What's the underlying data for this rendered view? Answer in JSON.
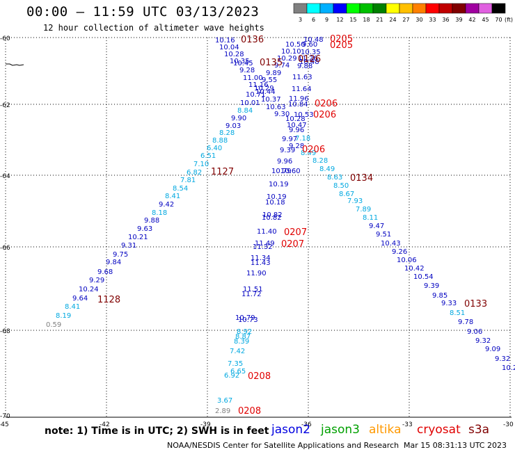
{
  "header": {
    "title": "00:00 — 11:59 UTC 03/13/2023",
    "subtitle": "12 hour collection of altimeter wave heights"
  },
  "color_scale": {
    "unit": "(ft)",
    "bins": [
      {
        "label": "3",
        "color": "#808080"
      },
      {
        "label": "6",
        "color": "#00ffff"
      },
      {
        "label": "9",
        "color": "#00b0ff"
      },
      {
        "label": "12",
        "color": "#0000ff"
      },
      {
        "label": "15",
        "color": "#00ff00"
      },
      {
        "label": "18",
        "color": "#00c000"
      },
      {
        "label": "21",
        "color": "#008000"
      },
      {
        "label": "24",
        "color": "#ffff00"
      },
      {
        "label": "27",
        "color": "#ffc000"
      },
      {
        "label": "30",
        "color": "#ff8000"
      },
      {
        "label": "33",
        "color": "#ff0000"
      },
      {
        "label": "36",
        "color": "#c00000"
      },
      {
        "label": "39",
        "color": "#800000"
      },
      {
        "label": "42",
        "color": "#a000a0"
      },
      {
        "label": "45",
        "color": "#e060e0"
      },
      {
        "label": "70",
        "color": "#000000"
      }
    ]
  },
  "map": {
    "lat_labels": [
      "-60",
      "-62",
      "-64",
      "-66",
      "-68",
      "-70"
    ],
    "lon_labels": [
      "-45",
      "-42",
      "-39",
      "-36",
      "-33",
      "-30"
    ],
    "colors": {
      "navy": "#0000c0",
      "cyan": "#00a8e0",
      "gray": "#808080",
      "time_dark": "#800000",
      "time_red": "#e00000",
      "grid": "#000000"
    },
    "readings": [
      {
        "t": "10.16",
        "c": "navy"
      },
      {
        "t": "10.04",
        "c": "navy"
      },
      {
        "t": "10.28",
        "c": "navy"
      },
      {
        "t": "10.35",
        "c": "navy"
      },
      {
        "t": "10.45",
        "c": "navy"
      },
      {
        "t": "9.28",
        "c": "navy"
      },
      {
        "t": "11.00",
        "c": "navy"
      },
      {
        "t": "11.16",
        "c": "navy"
      },
      {
        "t": "10.29",
        "c": "navy"
      },
      {
        "t": "10.44",
        "c": "navy"
      },
      {
        "t": "10.71",
        "c": "navy"
      },
      {
        "t": "10.37",
        "c": "navy"
      },
      {
        "t": "10.01",
        "c": "navy"
      },
      {
        "t": "8.84",
        "c": "cyan"
      },
      {
        "t": "9.90",
        "c": "navy"
      },
      {
        "t": "9.03",
        "c": "navy"
      },
      {
        "t": "8.28",
        "c": "cyan"
      },
      {
        "t": "8.88",
        "c": "cyan"
      },
      {
        "t": "6.40",
        "c": "cyan"
      },
      {
        "t": "6.51",
        "c": "cyan"
      },
      {
        "t": "7.10",
        "c": "cyan"
      },
      {
        "t": "6.82",
        "c": "cyan"
      },
      {
        "t": "7.81",
        "c": "cyan"
      },
      {
        "t": "8.54",
        "c": "cyan"
      },
      {
        "t": "8.41",
        "c": "cyan"
      },
      {
        "t": "9.42",
        "c": "navy"
      },
      {
        "t": "8.18",
        "c": "cyan"
      },
      {
        "t": "9.88",
        "c": "navy"
      },
      {
        "t": "9.63",
        "c": "navy"
      },
      {
        "t": "10.21",
        "c": "navy"
      },
      {
        "t": "9.31",
        "c": "navy"
      },
      {
        "t": "9.75",
        "c": "navy"
      },
      {
        "t": "9.84",
        "c": "navy"
      },
      {
        "t": "9.68",
        "c": "navy"
      },
      {
        "t": "9.29",
        "c": "navy"
      },
      {
        "t": "10.24",
        "c": "navy"
      },
      {
        "t": "9.64",
        "c": "navy"
      },
      {
        "t": "8.41",
        "c": "cyan"
      },
      {
        "t": "8.19",
        "c": "cyan"
      },
      {
        "t": "0.59",
        "c": "gray"
      },
      {
        "t": "10.48",
        "c": "navy"
      },
      {
        "t": "10.50",
        "c": "navy"
      },
      {
        "t": "9.60",
        "c": "navy"
      },
      {
        "t": "10.10",
        "c": "navy"
      },
      {
        "t": "10.35",
        "c": "navy"
      },
      {
        "t": "10.29",
        "c": "navy"
      },
      {
        "t": "11.26",
        "c": "navy"
      },
      {
        "t": "10.48",
        "c": "navy"
      },
      {
        "t": "9.88",
        "c": "navy"
      },
      {
        "t": "9.74",
        "c": "navy"
      },
      {
        "t": "9.89",
        "c": "navy"
      },
      {
        "t": "9.55",
        "c": "navy"
      },
      {
        "t": "11.63",
        "c": "navy"
      },
      {
        "t": "11.64",
        "c": "navy"
      },
      {
        "t": "11.96",
        "c": "navy"
      },
      {
        "t": "10.84",
        "c": "navy"
      },
      {
        "t": "10.63",
        "c": "navy"
      },
      {
        "t": "9.30",
        "c": "navy"
      },
      {
        "t": "10.53",
        "c": "navy"
      },
      {
        "t": "10.28",
        "c": "navy"
      },
      {
        "t": "10.47",
        "c": "navy"
      },
      {
        "t": "9.96",
        "c": "navy"
      },
      {
        "t": "9.97",
        "c": "navy"
      },
      {
        "t": "7.18",
        "c": "cyan"
      },
      {
        "t": "9.28",
        "c": "navy"
      },
      {
        "t": "9.39",
        "c": "navy"
      },
      {
        "t": "8.49",
        "c": "cyan"
      },
      {
        "t": "9.96",
        "c": "navy"
      },
      {
        "t": "8.28",
        "c": "cyan"
      },
      {
        "t": "8.49",
        "c": "cyan"
      },
      {
        "t": "10.79",
        "c": "navy"
      },
      {
        "t": "10.60",
        "c": "navy"
      },
      {
        "t": "8.63",
        "c": "cyan"
      },
      {
        "t": "10.19",
        "c": "navy"
      },
      {
        "t": "8.50",
        "c": "cyan"
      },
      {
        "t": "8.67",
        "c": "cyan"
      },
      {
        "t": "10.19",
        "c": "navy"
      },
      {
        "t": "10.18",
        "c": "navy"
      },
      {
        "t": "7.93",
        "c": "cyan"
      },
      {
        "t": "7.89",
        "c": "cyan"
      },
      {
        "t": "10.82",
        "c": "navy"
      },
      {
        "t": "10.82",
        "c": "navy"
      },
      {
        "t": "8.11",
        "c": "cyan"
      },
      {
        "t": "9.47",
        "c": "navy"
      },
      {
        "t": "11.40",
        "c": "navy"
      },
      {
        "t": "9.51",
        "c": "navy"
      },
      {
        "t": "11.49",
        "c": "navy"
      },
      {
        "t": "10.43",
        "c": "navy"
      },
      {
        "t": "11.32",
        "c": "navy"
      },
      {
        "t": "9.26",
        "c": "navy"
      },
      {
        "t": "10.06",
        "c": "navy"
      },
      {
        "t": "11.34",
        "c": "navy"
      },
      {
        "t": "11.43",
        "c": "navy"
      },
      {
        "t": "10.42",
        "c": "navy"
      },
      {
        "t": "11.90",
        "c": "navy"
      },
      {
        "t": "10.54",
        "c": "navy"
      },
      {
        "t": "9.39",
        "c": "navy"
      },
      {
        "t": "11.51",
        "c": "navy"
      },
      {
        "t": "9.85",
        "c": "navy"
      },
      {
        "t": "11.72",
        "c": "navy"
      },
      {
        "t": "9.33",
        "c": "navy"
      },
      {
        "t": "8.51",
        "c": "cyan"
      },
      {
        "t": "10.79",
        "c": "navy"
      },
      {
        "t": "10.73",
        "c": "navy"
      },
      {
        "t": "9.78",
        "c": "navy"
      },
      {
        "t": "8.92",
        "c": "cyan"
      },
      {
        "t": "9.06",
        "c": "navy"
      },
      {
        "t": "8.87",
        "c": "cyan"
      },
      {
        "t": "8.39",
        "c": "cyan"
      },
      {
        "t": "9.32",
        "c": "navy"
      },
      {
        "t": "7.42",
        "c": "cyan"
      },
      {
        "t": "9.09",
        "c": "navy"
      },
      {
        "t": "9.32",
        "c": "navy"
      },
      {
        "t": "7.35",
        "c": "cyan"
      },
      {
        "t": "6.65",
        "c": "cyan"
      },
      {
        "t": "10.2",
        "c": "navy"
      },
      {
        "t": "6.92",
        "c": "cyan"
      },
      {
        "t": "3.67",
        "c": "cyan"
      },
      {
        "t": "2.89",
        "c": "gray"
      }
    ],
    "times": [
      {
        "t": "0136",
        "c": "time_dark"
      },
      {
        "t": "0135",
        "c": "time_dark"
      },
      {
        "t": "0205",
        "c": "time_red"
      },
      {
        "t": "0205",
        "c": "time_red"
      },
      {
        "t": "0126",
        "c": "time_dark"
      },
      {
        "t": "0206",
        "c": "time_red"
      },
      {
        "t": "0206",
        "c": "time_red"
      },
      {
        "t": "0206",
        "c": "time_red"
      },
      {
        "t": "1127",
        "c": "time_dark"
      },
      {
        "t": "0134",
        "c": "time_dark"
      },
      {
        "t": "0207",
        "c": "time_red"
      },
      {
        "t": "0207",
        "c": "time_red"
      },
      {
        "t": "1128",
        "c": "time_dark"
      },
      {
        "t": "0133",
        "c": "time_dark"
      },
      {
        "t": "0208",
        "c": "time_red"
      },
      {
        "t": "0208",
        "c": "time_red"
      }
    ]
  },
  "legend": {
    "note": "note: 1) Time is in UTC; 2) SWH is in feet",
    "satellites": [
      {
        "name": "jason2",
        "color": "#0000e0"
      },
      {
        "name": "jason3",
        "color": "#00a000"
      },
      {
        "name": "altika",
        "color": "#ff9900"
      },
      {
        "name": "cryosat",
        "color": "#e00000"
      },
      {
        "name": "s3a",
        "color": "#800000"
      }
    ]
  },
  "footer": {
    "credit": "NOAA/NESDIS Center for Satellite Applications and Research",
    "created": "Mar 15 08:31:13 UTC 2023"
  }
}
